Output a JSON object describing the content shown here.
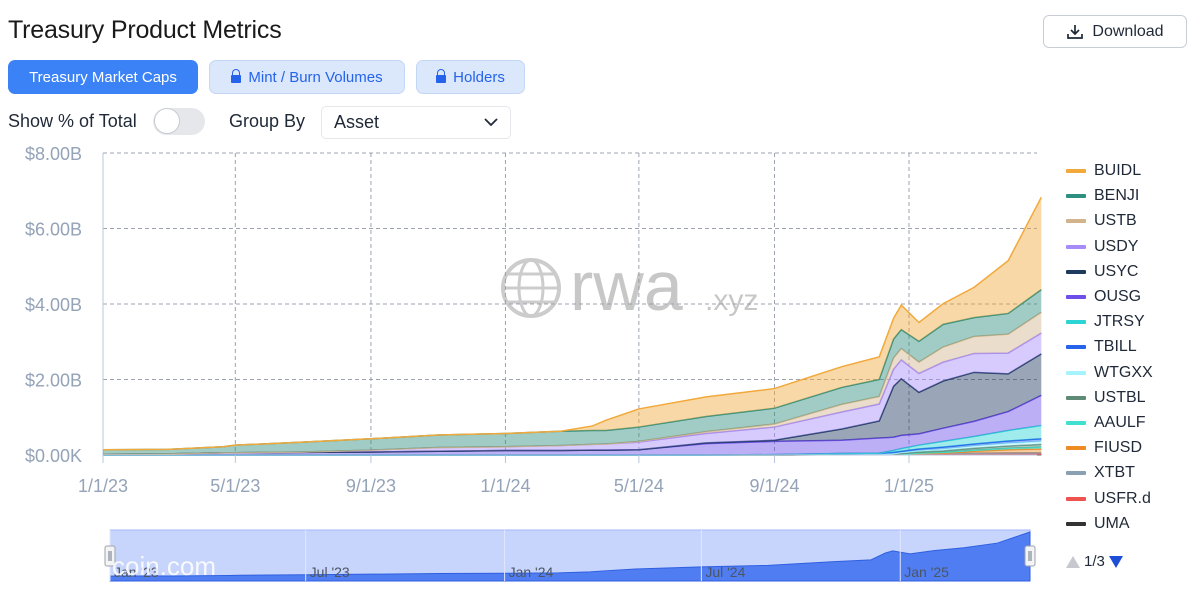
{
  "header": {
    "title": "Treasury Product Metrics",
    "download_label": "Download"
  },
  "tabs": [
    {
      "label": "Treasury Market Caps",
      "active": true,
      "locked": false
    },
    {
      "label": "Mint / Burn Volumes",
      "active": false,
      "locked": true
    },
    {
      "label": "Holders",
      "active": false,
      "locked": true
    }
  ],
  "controls": {
    "show_pct_label": "Show % of Total",
    "show_pct_enabled": false,
    "group_by_label": "Group By",
    "group_by_value": "Asset"
  },
  "watermark": {
    "main": "rwa",
    "suffix": ".xyz",
    "corner": "coin.com"
  },
  "pager": {
    "text": "1/3"
  },
  "colors": {
    "accent": "#3b82f6",
    "BUIDL": "#f2a93b",
    "BENJI": "#2f8f7f",
    "USTB": "#d1b48c",
    "USDY": "#a78bfa",
    "USYC": "#1e3a5f",
    "OUSG": "#6d4ee8",
    "JTRSY": "#2dd4d4",
    "TBILL": "#2563eb",
    "WTGXX": "#a5f3fc",
    "USTBL": "#5f8a75",
    "AAULF": "#40e0d0",
    "FIUSD": "#f08a24",
    "XTBT": "#8aa0b3",
    "USFR.d": "#ef5350",
    "UMA": "#333333"
  },
  "chart_data": {
    "type": "area",
    "stacked": true,
    "y_ticks": [
      "$0.00K",
      "$2.00B",
      "$4.00B",
      "$6.00B",
      "$8.00B"
    ],
    "ylim": [
      0,
      8
    ],
    "y_unit": "billions USD",
    "x_ticks": [
      "1/1/23",
      "5/1/23",
      "9/1/23",
      "1/1/24",
      "5/1/24",
      "9/1/24",
      "1/1/25"
    ],
    "x": [
      "2023-01-01",
      "2023-03-01",
      "2023-04-20",
      "2023-05-01",
      "2023-07-01",
      "2023-09-01",
      "2023-11-01",
      "2024-01-01",
      "2024-02-20",
      "2024-03-20",
      "2024-04-01",
      "2024-05-01",
      "2024-07-01",
      "2024-09-01",
      "2024-11-01",
      "2024-12-05",
      "2024-12-18",
      "2024-12-25",
      "2025-01-10",
      "2025-02-01",
      "2025-03-01",
      "2025-04-01",
      "2025-05-01"
    ],
    "series": [
      {
        "name": "UMA",
        "values": [
          0,
          0,
          0,
          0,
          0,
          0,
          0,
          0,
          0,
          0,
          0,
          0,
          0,
          0,
          0.01,
          0.01,
          0.01,
          0.01,
          0.01,
          0.01,
          0.01,
          0.01,
          0.01
        ]
      },
      {
        "name": "USFR.d",
        "values": [
          0,
          0,
          0,
          0,
          0,
          0,
          0,
          0,
          0,
          0,
          0,
          0,
          0,
          0,
          0.01,
          0.01,
          0.01,
          0.01,
          0.01,
          0.01,
          0.01,
          0.01,
          0.01
        ]
      },
      {
        "name": "XTBT",
        "values": [
          0,
          0,
          0,
          0,
          0,
          0,
          0,
          0,
          0,
          0,
          0,
          0,
          0,
          0,
          0,
          0,
          0,
          0,
          0.02,
          0.03,
          0.03,
          0.04,
          0.04
        ]
      },
      {
        "name": "FIUSD",
        "values": [
          0,
          0,
          0,
          0,
          0,
          0,
          0,
          0,
          0,
          0,
          0,
          0,
          0,
          0,
          0,
          0,
          0,
          0,
          0,
          0,
          0.05,
          0.08,
          0.1
        ]
      },
      {
        "name": "AAULF",
        "values": [
          0,
          0,
          0,
          0,
          0,
          0,
          0,
          0,
          0,
          0,
          0,
          0,
          0,
          0,
          0,
          0,
          0,
          0,
          0.01,
          0.02,
          0.03,
          0.04,
          0.05
        ]
      },
      {
        "name": "USTBL",
        "values": [
          0,
          0,
          0,
          0,
          0,
          0,
          0,
          0,
          0,
          0,
          0,
          0,
          0,
          0,
          0,
          0,
          0,
          0.02,
          0.03,
          0.04,
          0.05,
          0.06,
          0.07
        ]
      },
      {
        "name": "WTGXX",
        "values": [
          0,
          0,
          0,
          0,
          0,
          0,
          0,
          0,
          0,
          0,
          0,
          0,
          0,
          0,
          0,
          0,
          0.02,
          0.03,
          0.04,
          0.05,
          0.06,
          0.07,
          0.08
        ]
      },
      {
        "name": "TBILL",
        "values": [
          0,
          0,
          0,
          0,
          0,
          0,
          0,
          0,
          0,
          0,
          0,
          0,
          0,
          0.01,
          0.02,
          0.03,
          0.03,
          0.03,
          0.04,
          0.05,
          0.05,
          0.06,
          0.07
        ]
      },
      {
        "name": "JTRSY",
        "values": [
          0,
          0,
          0,
          0,
          0,
          0,
          0,
          0,
          0,
          0,
          0,
          0,
          0,
          0,
          0,
          0,
          0.05,
          0.07,
          0.1,
          0.15,
          0.2,
          0.28,
          0.35
        ]
      },
      {
        "name": "OUSG",
        "values": [
          0.02,
          0.03,
          0.06,
          0.06,
          0.07,
          0.08,
          0.1,
          0.12,
          0.12,
          0.13,
          0.13,
          0.14,
          0.3,
          0.35,
          0.35,
          0.4,
          0.35,
          0.35,
          0.3,
          0.35,
          0.4,
          0.5,
          0.8
        ]
      },
      {
        "name": "USYC",
        "values": [
          0,
          0,
          0,
          0,
          0,
          0,
          0,
          0,
          0,
          0,
          0,
          0,
          0.02,
          0.03,
          0.3,
          0.45,
          1.35,
          1.5,
          1.1,
          1.25,
          1.3,
          1.0,
          1.1
        ]
      },
      {
        "name": "USDY",
        "values": [
          0,
          0,
          0,
          0,
          0.01,
          0.05,
          0.1,
          0.1,
          0.13,
          0.15,
          0.16,
          0.2,
          0.25,
          0.35,
          0.45,
          0.45,
          0.45,
          0.5,
          0.5,
          0.5,
          0.5,
          0.55,
          0.55
        ]
      },
      {
        "name": "USTB",
        "values": [
          0,
          0,
          0,
          0,
          0,
          0,
          0,
          0,
          0,
          0,
          0,
          0.02,
          0.05,
          0.08,
          0.2,
          0.2,
          0.3,
          0.3,
          0.3,
          0.4,
          0.45,
          0.5,
          0.55
        ]
      },
      {
        "name": "BENJI",
        "values": [
          0.12,
          0.12,
          0.16,
          0.2,
          0.26,
          0.3,
          0.33,
          0.35,
          0.38,
          0.37,
          0.36,
          0.38,
          0.4,
          0.42,
          0.45,
          0.45,
          0.5,
          0.5,
          0.55,
          0.6,
          0.5,
          0.55,
          0.6
        ]
      },
      {
        "name": "BUIDL",
        "values": [
          0,
          0,
          0,
          0,
          0,
          0,
          0,
          0,
          0,
          0.12,
          0.27,
          0.48,
          0.52,
          0.52,
          0.55,
          0.6,
          0.55,
          0.65,
          0.5,
          0.55,
          0.8,
          1.4,
          2.45
        ]
      }
    ],
    "legend": [
      "BUIDL",
      "BENJI",
      "USTB",
      "USDY",
      "USYC",
      "OUSG",
      "JTRSY",
      "TBILL",
      "WTGXX",
      "USTBL",
      "AAULF",
      "FIUSD",
      "XTBT",
      "USFR.d",
      "UMA"
    ],
    "legend_position": "right",
    "grid": true,
    "navigator": {
      "labels": [
        "Jan '23",
        "Jul '23",
        "Jan '24",
        "Jul '24",
        "Jan '25"
      ]
    }
  }
}
